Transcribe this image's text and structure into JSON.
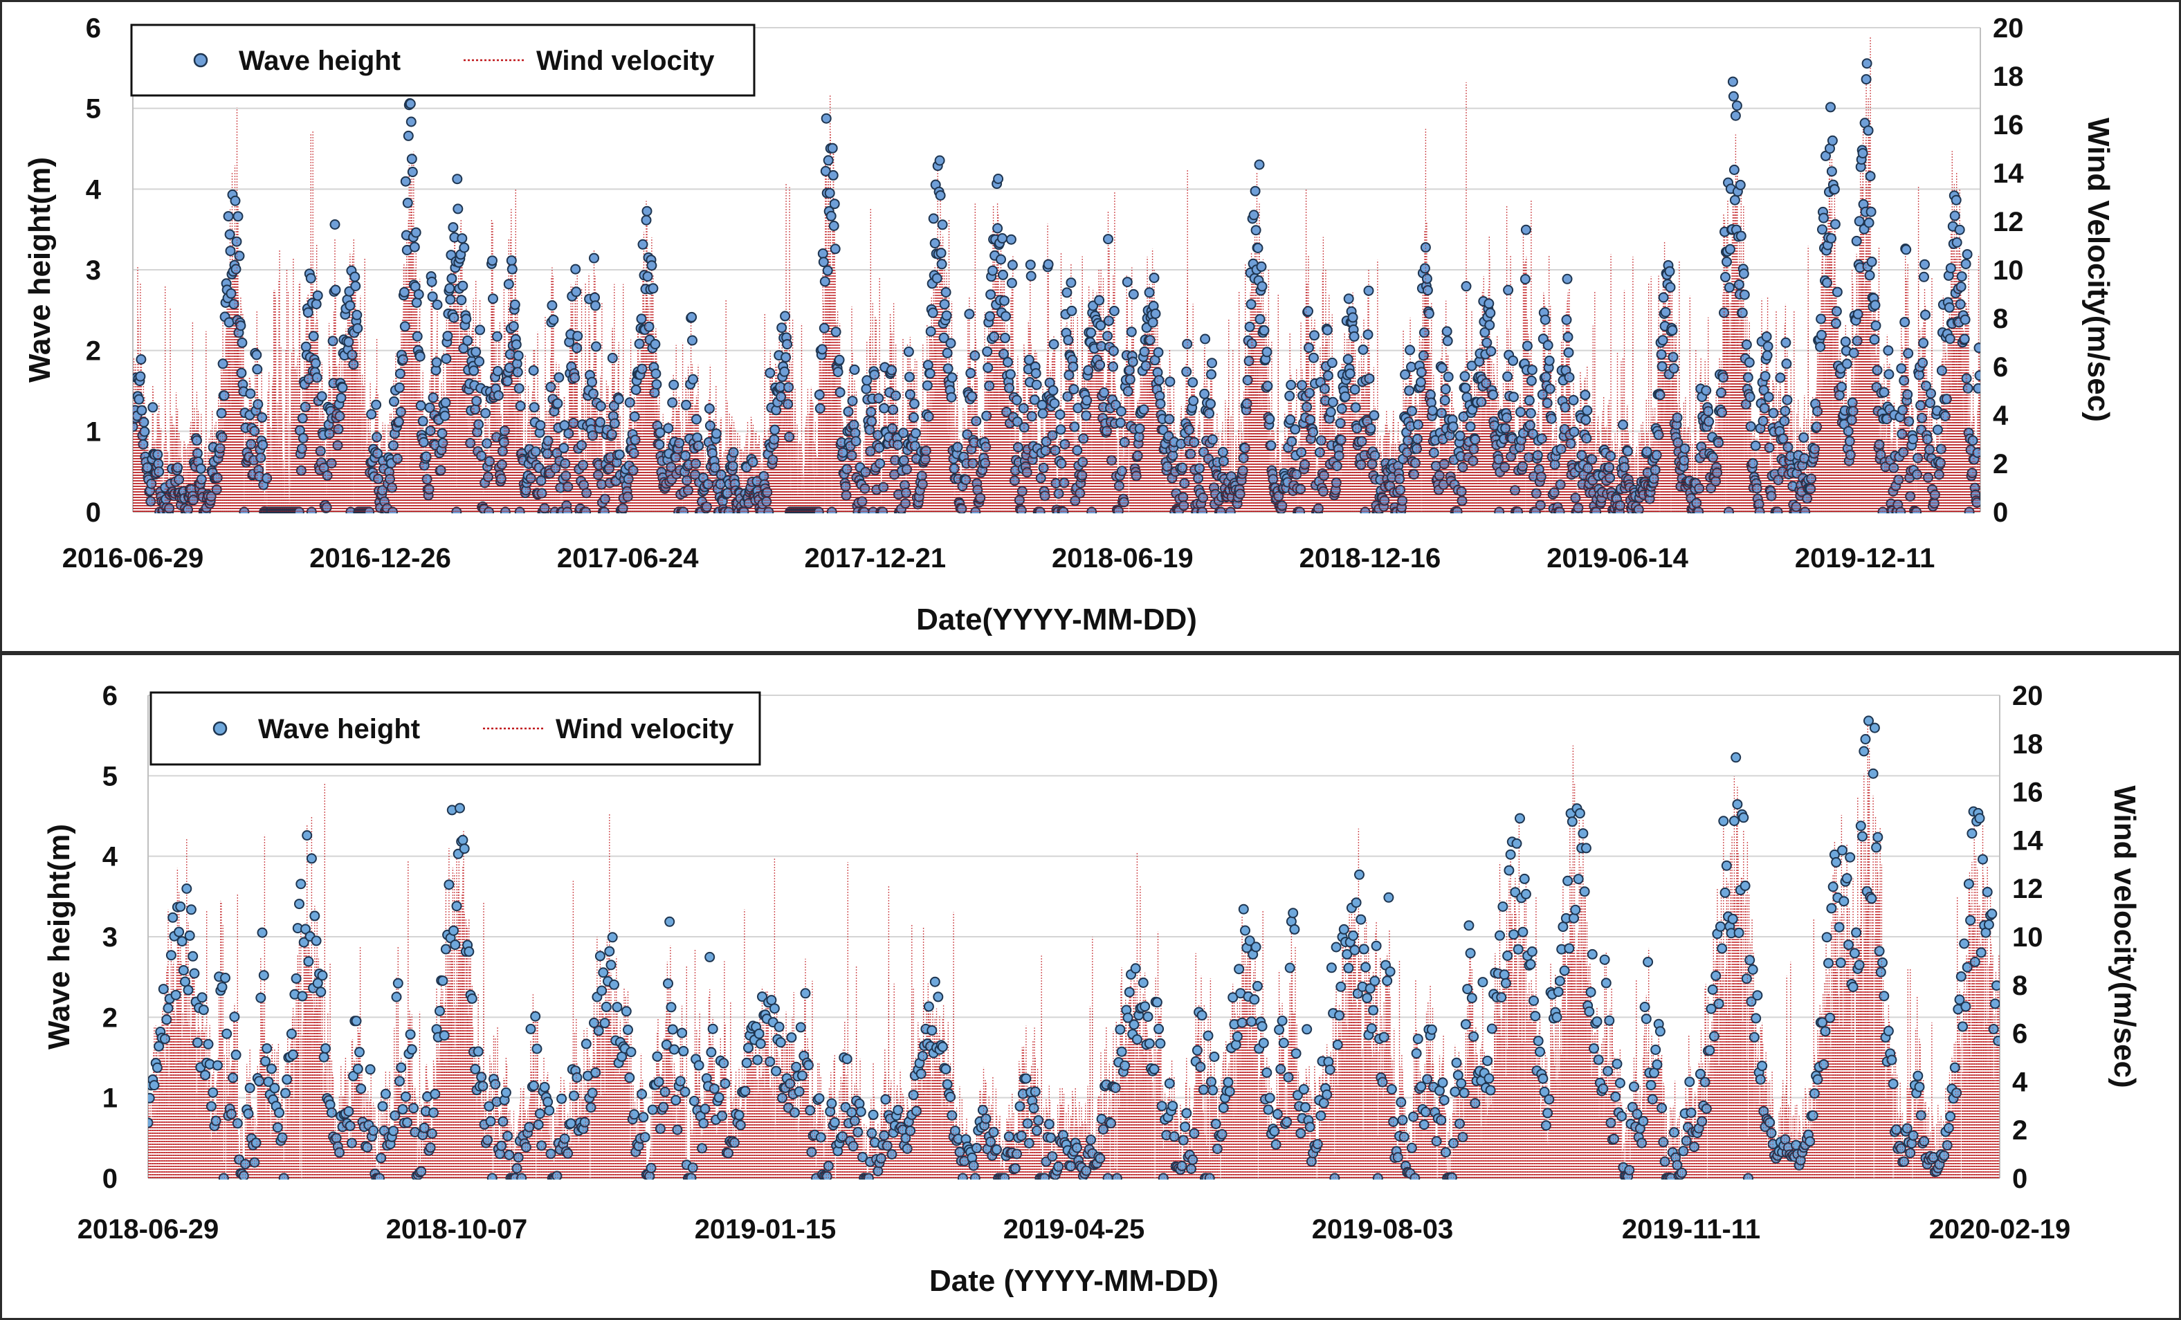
{
  "chart_data": [
    {
      "type": "scatter",
      "series": [
        {
          "name": "Wave height",
          "axis": "left",
          "marker": "circle",
          "color": "#6f9fd8",
          "edge": "#1e3550"
        },
        {
          "name": "Wind velocity",
          "axis": "right",
          "line": "dotted",
          "color": "#c0181c"
        }
      ],
      "xlabel": "Date(YYYY-MM-DD)",
      "ylabel": "Wave height(m)",
      "y2label": "Wind Velocity(m/sec)",
      "xticks": [
        "2016-06-29",
        "2016-12-26",
        "2017-06-24",
        "2017-12-21",
        "2018-06-19",
        "2018-12-16",
        "2019-06-14",
        "2019-12-11"
      ],
      "xlim": [
        "2016-06-29",
        "2020-03-04"
      ],
      "ylim": [
        0,
        6
      ],
      "y2lim": [
        0,
        20
      ],
      "yticks": [
        "0",
        "1",
        "2",
        "3",
        "4",
        "5",
        "6"
      ],
      "y2ticks": [
        "0",
        "2",
        "4",
        "6",
        "8",
        "10",
        "12",
        "14",
        "16",
        "18",
        "20"
      ],
      "grid": "horizontal",
      "legend": "top-left",
      "wave_peaks": [
        {
          "date": "2016-07-03",
          "value": 2.0
        },
        {
          "date": "2016-09-10",
          "value": 4.5
        },
        {
          "date": "2016-11-05",
          "value": 3.0
        },
        {
          "date": "2016-12-05",
          "value": 3.4
        },
        {
          "date": "2017-01-17",
          "value": 5.2
        },
        {
          "date": "2017-02-20",
          "value": 4.4
        },
        {
          "date": "2017-04-01",
          "value": 3.3
        },
        {
          "date": "2017-07-08",
          "value": 3.8
        },
        {
          "date": "2017-10-15",
          "value": 2.6
        },
        {
          "date": "2017-11-18",
          "value": 5.6
        },
        {
          "date": "2018-02-05",
          "value": 4.5
        },
        {
          "date": "2018-03-20",
          "value": 4.2
        },
        {
          "date": "2018-05-30",
          "value": 3.2
        },
        {
          "date": "2018-07-10",
          "value": 3.1
        },
        {
          "date": "2018-09-25",
          "value": 4.5
        },
        {
          "date": "2018-12-01",
          "value": 2.9
        },
        {
          "date": "2019-01-25",
          "value": 3.3
        },
        {
          "date": "2019-03-10",
          "value": 2.8
        },
        {
          "date": "2019-07-20",
          "value": 3.2
        },
        {
          "date": "2019-09-07",
          "value": 5.4
        },
        {
          "date": "2019-11-15",
          "value": 5.1
        },
        {
          "date": "2019-12-11",
          "value": 5.8
        },
        {
          "date": "2020-02-15",
          "value": 4.1
        }
      ]
    },
    {
      "type": "scatter",
      "series": [
        {
          "name": "Wave height",
          "axis": "left",
          "marker": "circle",
          "color": "#6fa8dc",
          "edge": "#1e3550"
        },
        {
          "name": "Wind velocity",
          "axis": "right",
          "line": "dotted",
          "color": "#c0181c"
        }
      ],
      "xlabel": "Date (YYYY-MM-DD)",
      "ylabel": "Wave height(m)",
      "y2label": "Wind velocity(m/sec)",
      "xticks": [
        "2018-06-29",
        "2018-10-07",
        "2019-01-15",
        "2019-04-25",
        "2019-08-03",
        "2019-11-11",
        "2020-02-19"
      ],
      "xlim": [
        "2018-06-29",
        "2020-02-19"
      ],
      "ylim": [
        0,
        6
      ],
      "y2lim": [
        0,
        20
      ],
      "yticks": [
        "0",
        "1",
        "2",
        "3",
        "4",
        "5",
        "6"
      ],
      "y2ticks": [
        "0",
        "2",
        "4",
        "6",
        "8",
        "10",
        "12",
        "14",
        "16",
        "18",
        "20"
      ],
      "grid": "horizontal",
      "legend": "top-left",
      "wave_peaks": [
        {
          "date": "2018-07-10",
          "value": 3.7
        },
        {
          "date": "2018-08-20",
          "value": 4.3
        },
        {
          "date": "2018-10-07",
          "value": 5.0
        },
        {
          "date": "2018-11-25",
          "value": 3.3
        },
        {
          "date": "2019-01-15",
          "value": 2.4
        },
        {
          "date": "2019-03-10",
          "value": 2.6
        },
        {
          "date": "2019-05-15",
          "value": 2.8
        },
        {
          "date": "2019-06-20",
          "value": 3.6
        },
        {
          "date": "2019-07-25",
          "value": 4.1
        },
        {
          "date": "2019-09-15",
          "value": 4.8
        },
        {
          "date": "2019-10-05",
          "value": 4.9
        },
        {
          "date": "2019-11-25",
          "value": 5.5
        },
        {
          "date": "2019-12-30",
          "value": 4.5
        },
        {
          "date": "2020-01-08",
          "value": 6.0
        },
        {
          "date": "2020-02-12",
          "value": 4.9
        }
      ]
    }
  ]
}
